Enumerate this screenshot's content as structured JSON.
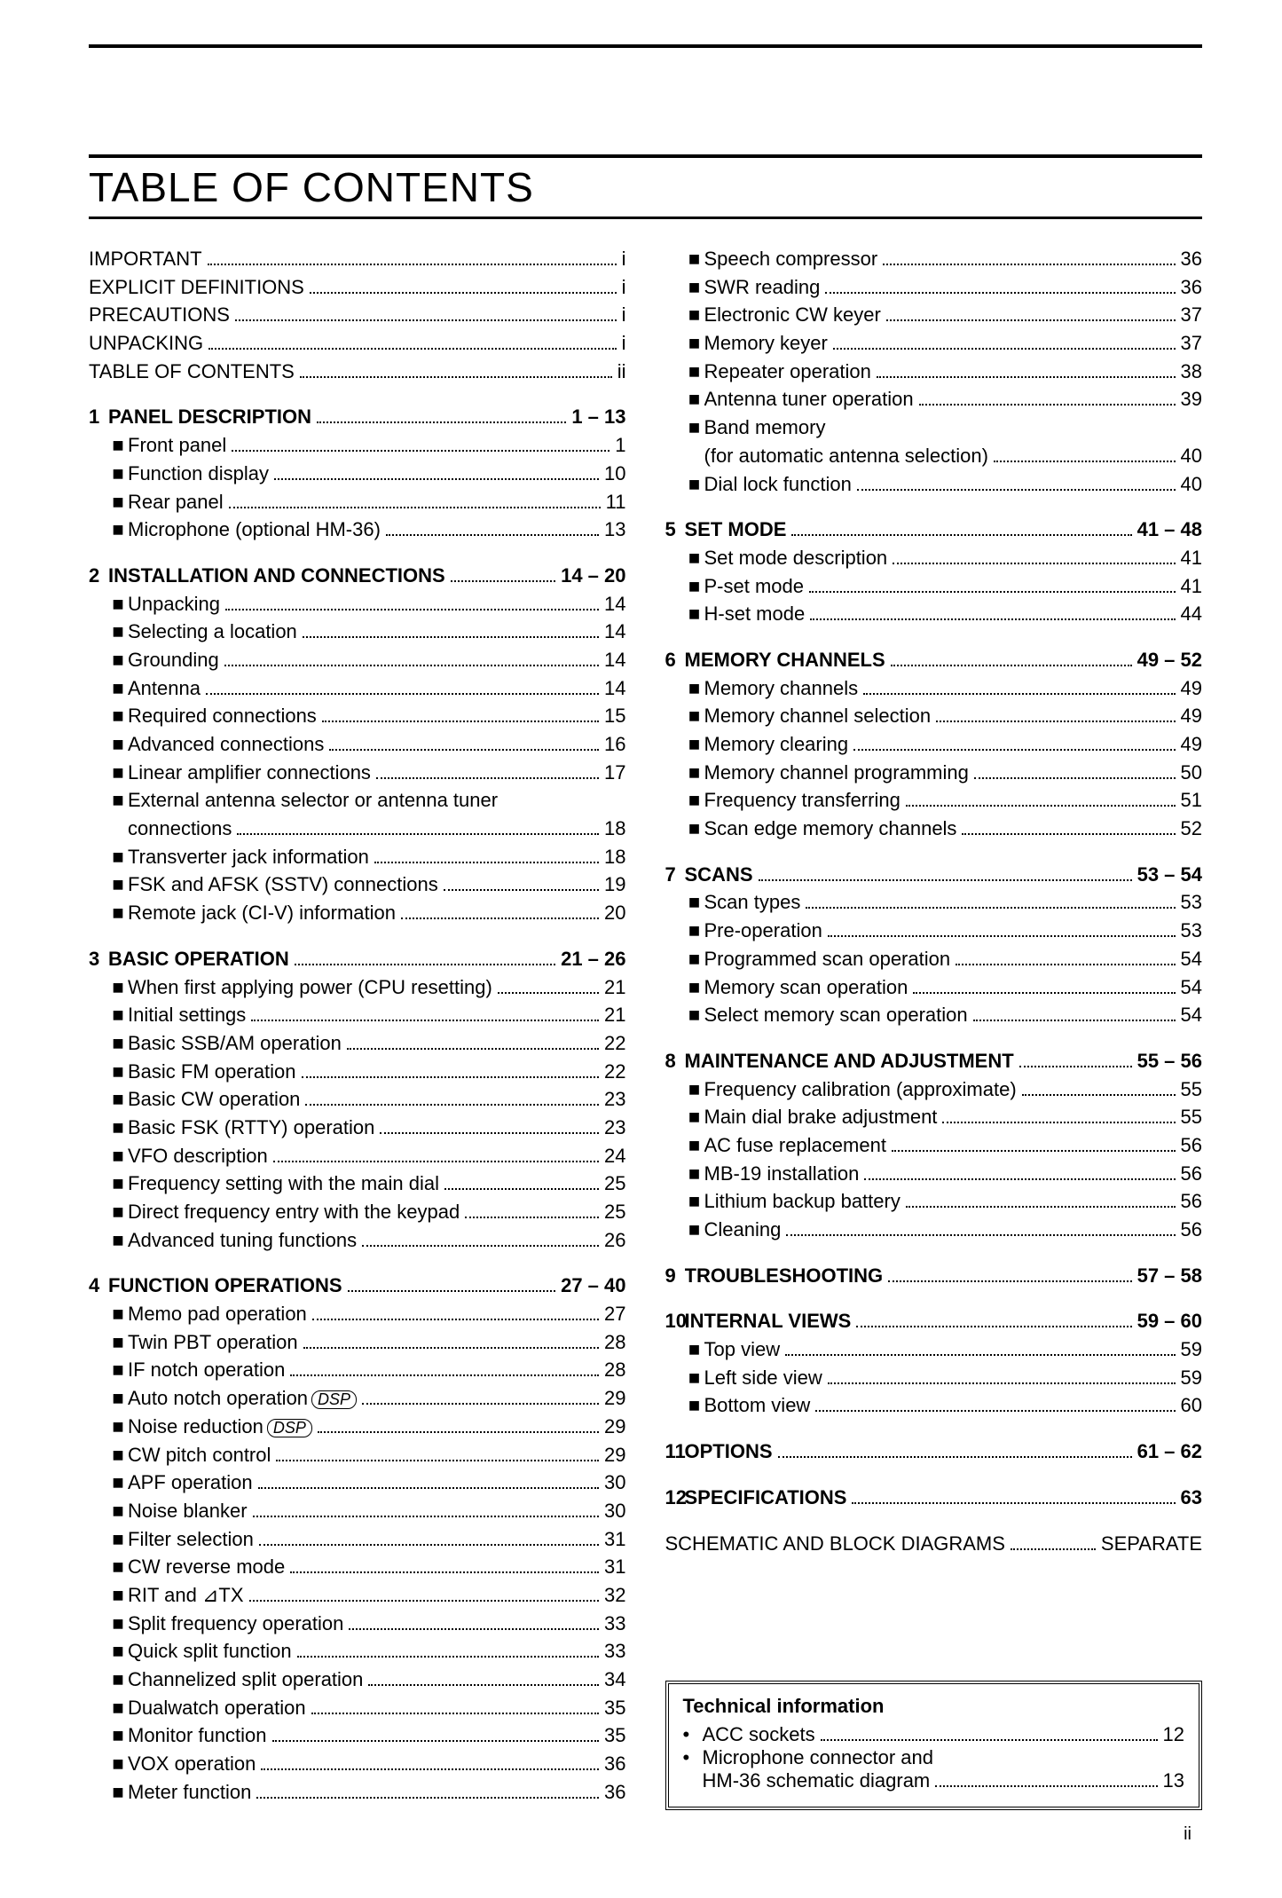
{
  "title": "TABLE OF CONTENTS",
  "page_number": "ii",
  "tech_box": {
    "title": "Technical information",
    "items": [
      {
        "label": "ACC sockets",
        "page": "12"
      },
      {
        "label": "Microphone connector and",
        "label2": "HM-36 schematic diagram",
        "page": "13"
      }
    ]
  },
  "col1": [
    {
      "type": "top",
      "label": "IMPORTANT",
      "page": "i"
    },
    {
      "type": "top",
      "label": "EXPLICIT DEFINITIONS",
      "page": "i"
    },
    {
      "type": "top",
      "label": "PRECAUTIONS",
      "page": "i"
    },
    {
      "type": "top",
      "label": "UNPACKING",
      "page": "i"
    },
    {
      "type": "top",
      "label": "TABLE OF CONTENTS",
      "page": "ii"
    },
    {
      "type": "gap"
    },
    {
      "type": "section",
      "num": "1",
      "label": "PANEL DESCRIPTION",
      "page": "1 – 13"
    },
    {
      "type": "item",
      "label": "Front panel",
      "page": "1"
    },
    {
      "type": "item",
      "label": "Function display",
      "page": "10"
    },
    {
      "type": "item",
      "label": "Rear panel",
      "page": "11"
    },
    {
      "type": "item",
      "label": "Microphone (optional HM-36)",
      "page": "13"
    },
    {
      "type": "gap"
    },
    {
      "type": "section",
      "num": "2",
      "label": "INSTALLATION AND CONNECTIONS",
      "page": "14 – 20"
    },
    {
      "type": "item",
      "label": "Unpacking",
      "page": "14"
    },
    {
      "type": "item",
      "label": "Selecting a location",
      "page": "14"
    },
    {
      "type": "item",
      "label": "Grounding",
      "page": "14"
    },
    {
      "type": "item",
      "label": "Antenna",
      "page": "14"
    },
    {
      "type": "item",
      "label": "Required connections",
      "page": "15"
    },
    {
      "type": "item",
      "label": "Advanced connections",
      "page": "16"
    },
    {
      "type": "item",
      "label": "Linear amplifier connections",
      "page": "17"
    },
    {
      "type": "item-nowrap1",
      "label": "External antenna selector or antenna tuner"
    },
    {
      "type": "item-wrap2",
      "label": "connections",
      "page": "18"
    },
    {
      "type": "item",
      "label": "Transverter jack information",
      "page": "18"
    },
    {
      "type": "item",
      "label": "FSK and AFSK (SSTV) connections",
      "page": "19"
    },
    {
      "type": "item",
      "label": "Remote jack (CI-V) information",
      "page": "20"
    },
    {
      "type": "gap"
    },
    {
      "type": "section",
      "num": "3",
      "label": "BASIC OPERATION",
      "page": "21 – 26"
    },
    {
      "type": "item",
      "label": "When first applying power (CPU resetting)",
      "page": "21"
    },
    {
      "type": "item",
      "label": "Initial settings",
      "page": "21"
    },
    {
      "type": "item",
      "label": "Basic SSB/AM operation",
      "page": "22"
    },
    {
      "type": "item",
      "label": "Basic FM operation",
      "page": "22"
    },
    {
      "type": "item",
      "label": "Basic CW operation",
      "page": "23"
    },
    {
      "type": "item",
      "label": "Basic FSK (RTTY) operation",
      "page": "23"
    },
    {
      "type": "item",
      "label": "VFO description",
      "page": "24"
    },
    {
      "type": "item",
      "label": "Frequency setting with the main dial",
      "page": "25"
    },
    {
      "type": "item",
      "label": "Direct frequency entry with the keypad",
      "page": "25"
    },
    {
      "type": "item",
      "label": "Advanced tuning functions",
      "page": "26"
    },
    {
      "type": "gap"
    },
    {
      "type": "section",
      "num": "4",
      "label": "FUNCTION OPERATIONS",
      "page": "27 – 40"
    },
    {
      "type": "item",
      "label": "Memo pad operation",
      "page": "27"
    },
    {
      "type": "item",
      "label": "Twin PBT operation",
      "page": "28"
    },
    {
      "type": "item",
      "label": "IF notch operation",
      "page": "28"
    },
    {
      "type": "item-dsp",
      "label": "Auto notch operation",
      "page": "29"
    },
    {
      "type": "item-dsp",
      "label": "Noise reduction",
      "page": "29"
    },
    {
      "type": "item",
      "label": "CW pitch control",
      "page": "29"
    },
    {
      "type": "item",
      "label": "APF operation",
      "page": "30"
    },
    {
      "type": "item",
      "label": "Noise blanker",
      "page": "30"
    },
    {
      "type": "item",
      "label": "Filter selection",
      "page": "31"
    },
    {
      "type": "item",
      "label": "CW reverse mode",
      "page": "31"
    },
    {
      "type": "item-delta",
      "label": "RIT and ",
      "delta": "⊿",
      "label2": "TX",
      "page": "32"
    },
    {
      "type": "item",
      "label": "Split frequency operation",
      "page": "33"
    },
    {
      "type": "item",
      "label": "Quick split function",
      "page": "33"
    },
    {
      "type": "item",
      "label": "Channelized split operation",
      "page": "34"
    },
    {
      "type": "item",
      "label": "Dualwatch operation",
      "page": "35"
    },
    {
      "type": "item",
      "label": "Monitor function",
      "page": "35"
    },
    {
      "type": "item",
      "label": "VOX operation",
      "page": "36"
    },
    {
      "type": "item",
      "label": "Meter function",
      "page": "36"
    }
  ],
  "col2": [
    {
      "type": "item",
      "label": "Speech compressor",
      "page": "36"
    },
    {
      "type": "item",
      "label": "SWR reading",
      "page": "36"
    },
    {
      "type": "item",
      "label": "Electronic CW keyer",
      "page": "37"
    },
    {
      "type": "item",
      "label": "Memory keyer",
      "page": "37"
    },
    {
      "type": "item",
      "label": "Repeater operation",
      "page": "38"
    },
    {
      "type": "item",
      "label": "Antenna tuner operation",
      "page": "39"
    },
    {
      "type": "item-nowrap1",
      "label": "Band memory"
    },
    {
      "type": "item-wrap2",
      "label": "(for automatic antenna selection)",
      "page": "40"
    },
    {
      "type": "item",
      "label": "Dial lock function",
      "page": "40"
    },
    {
      "type": "gap"
    },
    {
      "type": "section",
      "num": "5",
      "label": "SET MODE",
      "page": "41 – 48"
    },
    {
      "type": "item",
      "label": "Set mode description",
      "page": "41"
    },
    {
      "type": "item",
      "label": "P-set mode",
      "page": "41"
    },
    {
      "type": "item",
      "label": "H-set mode",
      "page": "44"
    },
    {
      "type": "gap"
    },
    {
      "type": "section",
      "num": "6",
      "label": "MEMORY CHANNELS",
      "page": "49 – 52"
    },
    {
      "type": "item",
      "label": "Memory channels",
      "page": "49"
    },
    {
      "type": "item",
      "label": "Memory channel selection",
      "page": "49"
    },
    {
      "type": "item",
      "label": "Memory clearing",
      "page": "49"
    },
    {
      "type": "item",
      "label": "Memory channel programming",
      "page": "50"
    },
    {
      "type": "item",
      "label": "Frequency transferring",
      "page": "51"
    },
    {
      "type": "item",
      "label": "Scan edge memory channels",
      "page": "52"
    },
    {
      "type": "gap"
    },
    {
      "type": "section",
      "num": "7",
      "label": "SCANS",
      "page": "53 – 54"
    },
    {
      "type": "item",
      "label": "Scan types",
      "page": "53"
    },
    {
      "type": "item",
      "label": "Pre-operation",
      "page": "53"
    },
    {
      "type": "item",
      "label": "Programmed scan operation",
      "page": "54"
    },
    {
      "type": "item",
      "label": "Memory scan operation",
      "page": "54"
    },
    {
      "type": "item",
      "label": "Select memory scan operation",
      "page": "54"
    },
    {
      "type": "gap"
    },
    {
      "type": "section",
      "num": "8",
      "label": "MAINTENANCE AND ADJUSTMENT",
      "page": "55 – 56"
    },
    {
      "type": "item",
      "label": "Frequency calibration (approximate)",
      "page": "55"
    },
    {
      "type": "item",
      "label": "Main dial brake adjustment",
      "page": "55"
    },
    {
      "type": "item",
      "label": "AC fuse replacement",
      "page": "56"
    },
    {
      "type": "item",
      "label": "MB-19 installation",
      "page": "56"
    },
    {
      "type": "item",
      "label": "Lithium backup battery",
      "page": "56"
    },
    {
      "type": "item",
      "label": "Cleaning",
      "page": "56"
    },
    {
      "type": "gap"
    },
    {
      "type": "section",
      "num": "9",
      "label": "TROUBLESHOOTING",
      "page": "57 – 58"
    },
    {
      "type": "gap"
    },
    {
      "type": "section",
      "num": "10",
      "label": "INTERNAL VIEWS",
      "page": "59 – 60"
    },
    {
      "type": "item",
      "label": "Top view",
      "page": "59"
    },
    {
      "type": "item",
      "label": "Left side view",
      "page": "59"
    },
    {
      "type": "item",
      "label": "Bottom view",
      "page": "60"
    },
    {
      "type": "gap"
    },
    {
      "type": "section",
      "num": "11",
      "label": "OPTIONS",
      "page": "61 – 62"
    },
    {
      "type": "gap"
    },
    {
      "type": "section",
      "num": "12",
      "label": "SPECIFICATIONS",
      "page": "63"
    },
    {
      "type": "gap"
    },
    {
      "type": "top",
      "label": "SCHEMATIC AND BLOCK DIAGRAMS",
      "page": "SEPARATE"
    }
  ]
}
